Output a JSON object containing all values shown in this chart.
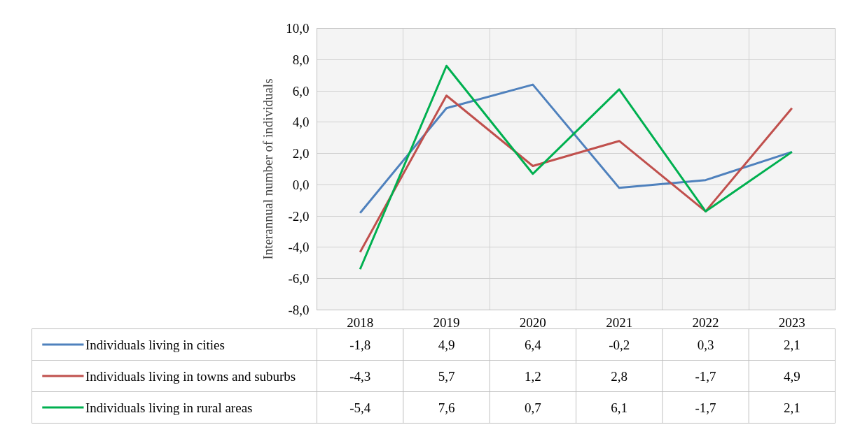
{
  "chart_data": {
    "type": "line",
    "ylabel": "Interannual number of individuals",
    "categories": [
      "2018",
      "2019",
      "2020",
      "2021",
      "2022",
      "2023"
    ],
    "series": [
      {
        "name": "Individuals living in cities",
        "color": "#4f81bd",
        "values": [
          -1.8,
          4.9,
          6.4,
          -0.2,
          0.3,
          2.1
        ],
        "value_labels": [
          "-1,8",
          "4,9",
          "6,4",
          "-0,2",
          "0,3",
          "2,1"
        ]
      },
      {
        "name": "Individuals living in towns and suburbs",
        "color": "#c0504d",
        "values": [
          -4.3,
          5.7,
          1.2,
          2.8,
          -1.7,
          4.9
        ],
        "value_labels": [
          "-4,3",
          "5,7",
          "1,2",
          "2,8",
          "-1,7",
          "4,9"
        ]
      },
      {
        "name": "Individuals living in rural areas",
        "color": "#00b050",
        "values": [
          -5.4,
          7.6,
          0.7,
          6.1,
          -1.7,
          2.1
        ],
        "value_labels": [
          "-5,4",
          "7,6",
          "0,7",
          "6,1",
          "-1,7",
          "2,1"
        ]
      }
    ],
    "ylim": [
      -8,
      10
    ],
    "yticks": [
      {
        "value": -8,
        "label": "-8,0"
      },
      {
        "value": -6,
        "label": "-6,0"
      },
      {
        "value": -4,
        "label": "-4,0"
      },
      {
        "value": -2,
        "label": "-2,0"
      },
      {
        "value": 0,
        "label": "0,0"
      },
      {
        "value": 2,
        "label": "2,0"
      },
      {
        "value": 4,
        "label": "4,0"
      },
      {
        "value": 6,
        "label": "6,0"
      },
      {
        "value": 8,
        "label": "8,0"
      },
      {
        "value": 10,
        "label": "10,0"
      }
    ],
    "grid": true,
    "legend": "bottom",
    "marker": "none",
    "line_style": "solid"
  }
}
